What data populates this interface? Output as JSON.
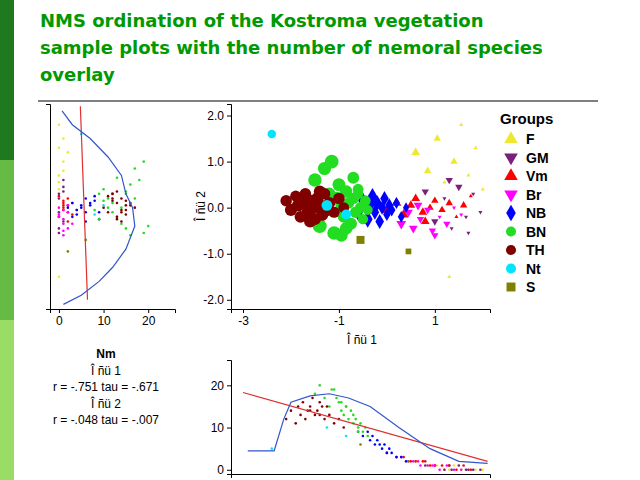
{
  "title": [
    "NMS ordination of the Kostroma vegetation",
    "sample plots with the number of nemoral species",
    "overlay"
  ],
  "chart_data": [
    {
      "type": "scatter",
      "xlabel": "Î ñü 1",
      "ylabel": "Î ñü 2",
      "xlim": [
        -3.25,
        2.15
      ],
      "xticks": [
        -3,
        -1,
        1
      ],
      "ylim": [
        -2.2,
        2.25
      ],
      "yticks": [
        {
          "value": 2,
          "label": "2.0"
        },
        {
          "value": 1,
          "label": "1.0"
        },
        {
          "value": 0,
          "label": "0.0"
        },
        {
          "value": -1,
          "label": "-1.0"
        },
        {
          "value": -2,
          "label": "-2.0"
        }
      ],
      "legend": "right",
      "legend_title": "Groups",
      "series": [
        {
          "name": "F",
          "color": "#f0e830",
          "marker": "triangle-up",
          "x": [
            0.6,
            0.85,
            1.05,
            1.2,
            1.4,
            1.55,
            1.7,
            1.85,
            2.0,
            1.3
          ],
          "values": [
            1.2,
            0.8,
            1.5,
            0.55,
            1.0,
            1.8,
            0.7,
            1.3,
            0.4,
            -1.5
          ],
          "sizes": [
            2,
            1,
            1,
            0,
            1,
            0,
            0,
            0,
            0,
            0
          ]
        },
        {
          "name": "GM",
          "color": "#7a1f7a",
          "marker": "triangle-down",
          "x": [
            0.8,
            1.0,
            1.2,
            1.35,
            1.5,
            1.65,
            1.8,
            1.95,
            1.3,
            1.7
          ],
          "values": [
            0.35,
            -0.3,
            0.2,
            -0.45,
            0.45,
            -0.2,
            0.3,
            -0.1,
            0.6,
            -0.55
          ],
          "sizes": [
            1,
            1,
            0,
            0,
            1,
            0,
            0,
            0,
            1,
            0
          ]
        },
        {
          "name": "Vm",
          "color": "#ff0000",
          "marker": "triangle-up",
          "x": [
            0.0,
            0.2,
            0.35,
            0.5,
            0.6,
            0.75,
            0.9,
            1.0,
            1.15,
            1.3,
            1.45,
            1.6,
            1.75,
            0.8
          ],
          "values": [
            -0.05,
            0.1,
            -0.15,
            0.05,
            0.2,
            -0.1,
            0.0,
            0.15,
            -0.05,
            0.1,
            -0.2,
            0.05,
            0.25,
            -0.3
          ],
          "sizes": [
            4,
            3,
            3,
            2,
            2,
            2,
            1,
            1,
            1,
            1,
            0,
            1,
            0,
            2
          ]
        },
        {
          "name": "Br",
          "color": "#ff00ff",
          "marker": "triangle-down",
          "x": [
            0.3,
            0.45,
            0.55,
            0.7,
            0.85,
            0.95,
            1.1,
            1.25,
            1.4,
            1.55,
            0.65,
            1.0
          ],
          "values": [
            -0.35,
            -0.1,
            -0.45,
            -0.25,
            -0.05,
            -0.5,
            -0.2,
            -0.35,
            0.0,
            -0.15,
            0.05,
            -0.6
          ],
          "sizes": [
            3,
            2,
            2,
            1,
            1,
            1,
            0,
            1,
            0,
            0,
            2,
            1
          ]
        },
        {
          "name": "NB",
          "color": "#0000ff",
          "marker": "diamond",
          "x": [
            -0.6,
            -0.5,
            -0.4,
            -0.35,
            -0.3,
            -0.25,
            -0.2,
            -0.15,
            -0.1,
            -0.05,
            0.0,
            0.05,
            0.1,
            0.2,
            0.3,
            0.4
          ],
          "values": [
            -0.1,
            0.15,
            -0.25,
            0.05,
            0.25,
            -0.1,
            0.1,
            -0.3,
            0.0,
            0.2,
            -0.15,
            0.05,
            -0.05,
            0.1,
            -0.2,
            0.0
          ],
          "sizes": [
            9,
            8,
            9,
            7,
            8,
            6,
            7,
            6,
            5,
            6,
            4,
            5,
            4,
            3,
            3,
            2
          ]
        },
        {
          "name": "BN",
          "color": "#22dd22",
          "marker": "circle",
          "x": [
            -1.5,
            -1.4,
            -1.3,
            -1.2,
            -1.1,
            -1.0,
            -0.95,
            -0.9,
            -0.85,
            -0.8,
            -0.75,
            -0.7,
            -0.65,
            -0.6,
            -0.55,
            -0.5,
            -0.45,
            -0.4,
            -1.15,
            -0.95,
            -0.7,
            -1.05,
            -0.85,
            -0.6
          ],
          "values": [
            0.6,
            -0.4,
            0.85,
            0.3,
            -0.55,
            0.5,
            0.0,
            -0.2,
            0.35,
            0.1,
            -0.35,
            0.2,
            -0.1,
            0.4,
            0.0,
            -0.25,
            0.15,
            -0.05,
            1.0,
            -0.6,
            0.65,
            0.2,
            -0.45,
            0.3
          ],
          "sizes": [
            18,
            20,
            17,
            15,
            19,
            16,
            14,
            13,
            15,
            12,
            14,
            11,
            12,
            10,
            11,
            9,
            10,
            8,
            19,
            16,
            13,
            17,
            15,
            9
          ]
        },
        {
          "name": "TH",
          "color": "#800000",
          "marker": "circle",
          "x": [
            -2.1,
            -2.0,
            -1.9,
            -1.85,
            -1.8,
            -1.75,
            -1.7,
            -1.65,
            -1.6,
            -1.55,
            -1.5,
            -1.45,
            -1.4,
            -1.35,
            -1.3,
            -1.2,
            -1.1,
            -1.0,
            -0.9,
            -1.6,
            -1.4,
            -1.25
          ],
          "values": [
            0.15,
            -0.05,
            0.25,
            0.05,
            -0.2,
            0.1,
            0.3,
            -0.1,
            0.15,
            0.0,
            -0.25,
            0.2,
            0.05,
            -0.15,
            0.3,
            0.1,
            -0.1,
            0.2,
            0.0,
            -0.3,
            0.35,
            -0.05
          ],
          "sizes": [
            12,
            14,
            11,
            15,
            13,
            16,
            12,
            14,
            15,
            17,
            13,
            14,
            16,
            15,
            12,
            13,
            11,
            12,
            10,
            14,
            13,
            15
          ]
        },
        {
          "name": "Nt",
          "color": "#00e5ff",
          "marker": "circle",
          "x": [
            -2.4,
            -1.25,
            -0.85
          ],
          "values": [
            1.6,
            0.05,
            -0.15
          ],
          "sizes": [
            5,
            10,
            8
          ]
        },
        {
          "name": "S",
          "color": "#808000",
          "marker": "square",
          "x": [
            0.45,
            -0.55
          ],
          "values": [
            -0.95,
            -0.7
          ],
          "sizes": [
            2,
            6
          ]
        }
      ]
    },
    {
      "type": "scatter",
      "xlim": [
        -2,
        26
      ],
      "xticks": [
        0,
        10,
        20
      ],
      "ylim": [
        -2.2,
        2.25
      ],
      "tick_labels": "x",
      "lines": [
        {
          "type": "line",
          "color": "#e03030",
          "x": [
            4.8,
            6.4
          ],
          "values": [
            2.2,
            -2.0
          ]
        },
        {
          "type": "line",
          "color": "#3355cc",
          "x": [
            0.7,
            3,
            7,
            11,
            14,
            15,
            16.5,
            17,
            15,
            12,
            9,
            5,
            1
          ],
          "values": [
            2.1,
            1.8,
            1.5,
            1.1,
            0.7,
            0.3,
            0.0,
            -0.4,
            -0.9,
            -1.3,
            -1.6,
            -1.9,
            -2.1
          ]
        }
      ],
      "annotations": [
        "Nm",
        "Î ñü 1",
        "r = -.751 tau = -.671",
        "Î ñü 2",
        "r = -.048 tau = -.007"
      ]
    },
    {
      "type": "scatter",
      "xlim": [
        -3.25,
        2.15
      ],
      "ylim": [
        -1,
        26
      ],
      "yticks": [
        0,
        10,
        20
      ],
      "tick_labels": "y",
      "lines": [
        {
          "type": "line",
          "color": "#e03030",
          "x": [
            -3.0,
            2.1
          ],
          "values": [
            18.3,
            2.0
          ]
        },
        {
          "type": "line",
          "color": "#3355cc",
          "x": [
            -2.9,
            -2.35,
            -2.15,
            -2.0,
            -1.6,
            -1.2,
            -0.8,
            -0.35,
            0.25,
            0.9,
            1.5,
            2.1
          ],
          "values": [
            4.5,
            4.5,
            12,
            16,
            17.5,
            18,
            17,
            15,
            10,
            5,
            2,
            1.5
          ]
        }
      ]
    }
  ]
}
